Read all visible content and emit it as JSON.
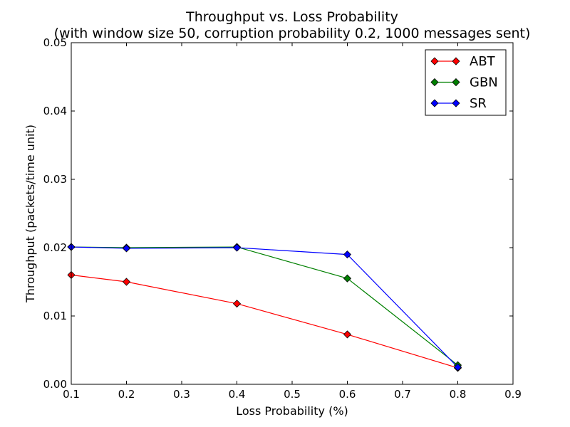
{
  "chart_data": {
    "type": "line",
    "title": "Throughput vs. Loss Probability",
    "subtitle": "(with window size 50, corruption probability 0.2, 1000 messages sent)",
    "xlabel": "Loss Probability (%)",
    "ylabel": "Throughput (packets/time unit)",
    "xlim": [
      0.1,
      0.9
    ],
    "ylim": [
      0.0,
      0.05
    ],
    "xticks": [
      "0.1",
      "0.2",
      "0.3",
      "0.4",
      "0.5",
      "0.6",
      "0.7",
      "0.8",
      "0.9"
    ],
    "yticks": [
      "0.00",
      "0.01",
      "0.02",
      "0.03",
      "0.04",
      "0.05"
    ],
    "grid": false,
    "legend_position": "top-right",
    "x": [
      0.1,
      0.2,
      0.4,
      0.6,
      0.8
    ],
    "series": [
      {
        "name": "ABT",
        "color": "#ff0000",
        "values": [
          0.016,
          0.015,
          0.0118,
          0.0073,
          0.0024
        ]
      },
      {
        "name": "GBN",
        "color": "#008000",
        "values": [
          0.0201,
          0.02,
          0.0201,
          0.0155,
          0.0028
        ]
      },
      {
        "name": "SR",
        "color": "#0000ff",
        "values": [
          0.0201,
          0.0199,
          0.02,
          0.019,
          0.0025
        ]
      }
    ]
  }
}
